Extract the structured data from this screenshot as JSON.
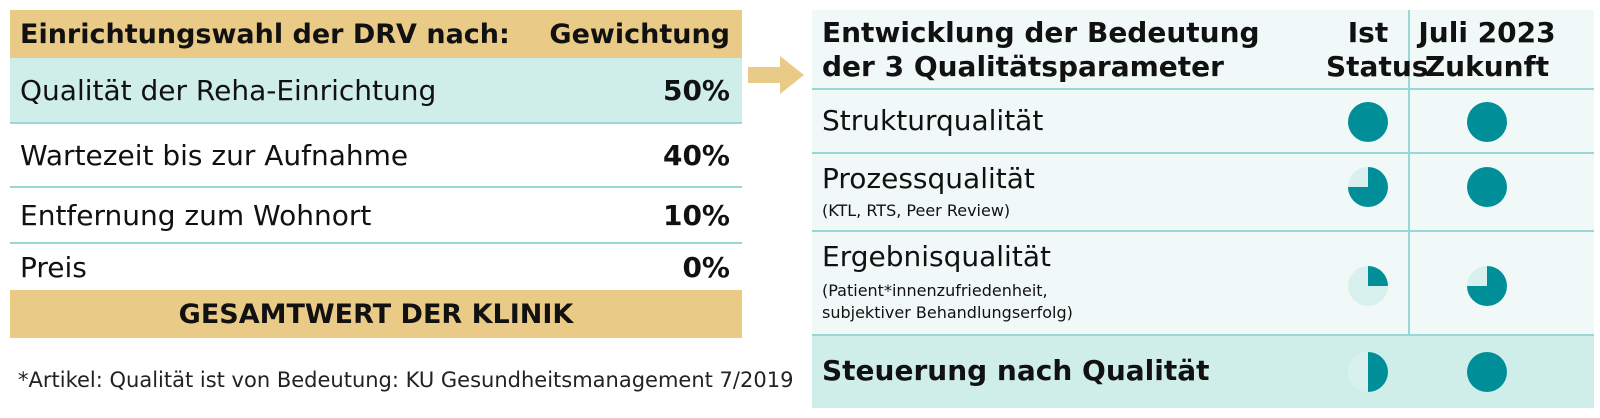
{
  "left_table": {
    "header_label": "Einrichtungswahl der DRV nach:",
    "header_value": "Gewichtung",
    "rows": [
      {
        "label": "Qualität der Reha-Einrichtung",
        "value": "50%"
      },
      {
        "label": "Wartezeit bis zur Aufnahme",
        "value": "40%"
      },
      {
        "label": "Entfernung zum Wohnort",
        "value": "10%"
      },
      {
        "label": "Preis",
        "value": "0%"
      }
    ],
    "total_label": "GESAMTWERT DER KLINIK"
  },
  "footnote": "*Artikel: Qualität ist von Bedeutung: KU Gesundheitsmanagement 7/2019",
  "right_table": {
    "title_line1": "Entwicklung der Bedeutung",
    "title_line2": "der 3 Qualitätsparameter",
    "col1_line1": "Ist",
    "col1_line2": "Status",
    "col2_line1": "Juli 2023",
    "col2_line2": "Zukunft",
    "rows": [
      {
        "label": "Strukturqualität",
        "sub1": "",
        "sub2": "",
        "ist": 1.0,
        "zukunft": 1.0
      },
      {
        "label": "Prozessqualität",
        "sub1": "(KTL, RTS, Peer Review)",
        "sub2": "",
        "ist": 0.75,
        "zukunft": 1.0
      },
      {
        "label": "Ergebnisqualität",
        "sub1": "(Patient*innenzufriedenheit,",
        "sub2": "subjektiver Behandlungserfolg)",
        "ist": 0.25,
        "zukunft": 0.75
      },
      {
        "label": "Steuerung nach Qualität",
        "sub1": "",
        "sub2": "",
        "ist": 0.5,
        "zukunft": 1.0
      }
    ]
  },
  "colors": {
    "gold": "#e9ca86",
    "teal": "#008f98",
    "teal_light": "#cfeeea",
    "pie_bg": "#d8f1ee"
  }
}
